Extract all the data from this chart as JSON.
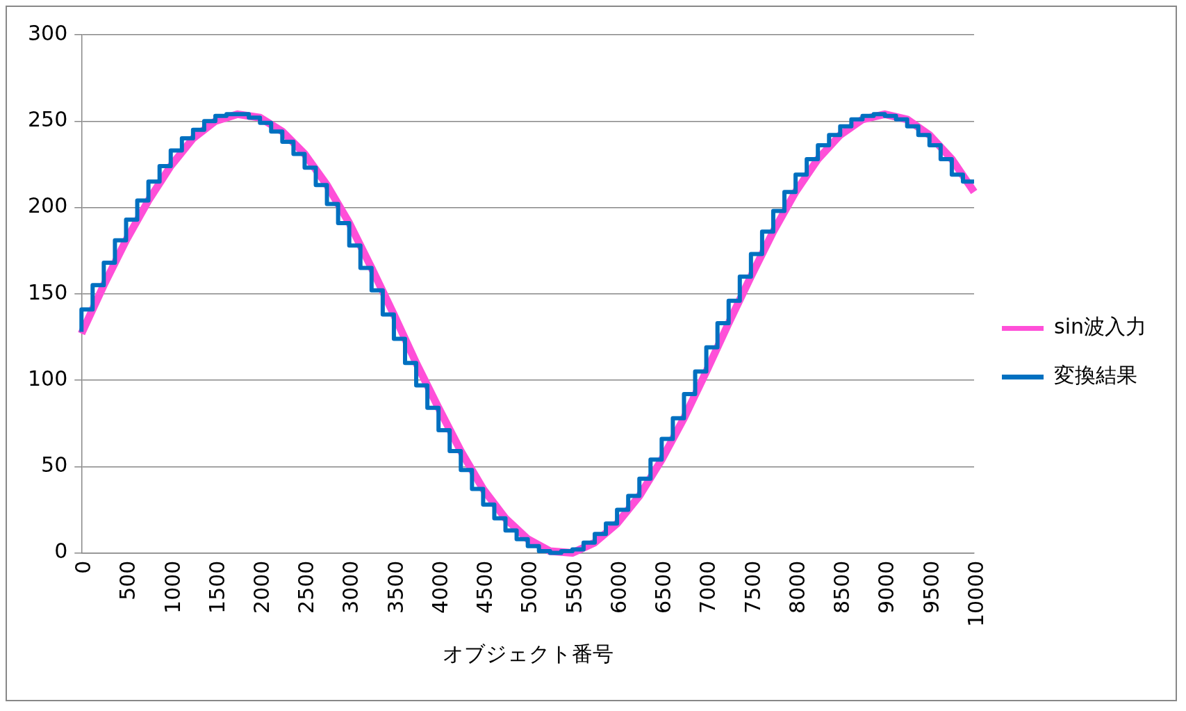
{
  "chart_data": {
    "type": "line",
    "xlabel": "オブジェクト番号",
    "xlim": [
      0,
      10000
    ],
    "xticks": [
      0,
      500,
      1000,
      1500,
      2000,
      2500,
      3000,
      3500,
      4000,
      4500,
      5000,
      5500,
      6000,
      6500,
      7000,
      7500,
      8000,
      8500,
      9000,
      9500,
      10000
    ],
    "ylim": [
      0,
      300
    ],
    "yticks": [
      0,
      50,
      100,
      150,
      200,
      250,
      300
    ],
    "grid": "y",
    "legend": "right",
    "line_style": "solid",
    "marker": "none",
    "series": [
      {
        "name": "sin波入力",
        "color": "#ff4fd8",
        "type": "line",
        "x": [
          0,
          250,
          500,
          750,
          1000,
          1250,
          1500,
          1750,
          2000,
          2250,
          2500,
          2750,
          3000,
          3250,
          3500,
          3750,
          4000,
          4250,
          4500,
          4750,
          5000,
          5250,
          5500,
          5750,
          6000,
          6250,
          6500,
          6750,
          7000,
          7250,
          7500,
          7750,
          8000,
          8250,
          8500,
          8750,
          9000,
          9250,
          9500,
          9750,
          10000
        ],
        "values": [
          127,
          155,
          181,
          204,
          224,
          240,
          250,
          254,
          252,
          244,
          231,
          213,
          191,
          165,
          138,
          110,
          84,
          59,
          37,
          20,
          8,
          1,
          0,
          6,
          17,
          33,
          54,
          78,
          105,
          133,
          160,
          186,
          209,
          228,
          242,
          251,
          254,
          251,
          242,
          228,
          209
        ]
      },
      {
        "name": "変換結果",
        "color": "#0070c0",
        "type": "step",
        "x": [
          0,
          125,
          250,
          375,
          500,
          625,
          750,
          875,
          1000,
          1125,
          1250,
          1375,
          1500,
          1625,
          1750,
          1875,
          2000,
          2125,
          2250,
          2375,
          2500,
          2625,
          2750,
          2875,
          3000,
          3125,
          3250,
          3375,
          3500,
          3625,
          3750,
          3875,
          4000,
          4125,
          4250,
          4375,
          4500,
          4625,
          4750,
          4875,
          5000,
          5125,
          5250,
          5375,
          5500,
          5625,
          5750,
          5875,
          6000,
          6125,
          6250,
          6375,
          6500,
          6625,
          6750,
          6875,
          7000,
          7125,
          7250,
          7375,
          7500,
          7625,
          7750,
          7875,
          8000,
          8125,
          8250,
          8375,
          8500,
          8625,
          8750,
          8875,
          9000,
          9125,
          9250,
          9375,
          9500,
          9625,
          9750,
          9875,
          10000
        ],
        "values": [
          128,
          141,
          155,
          168,
          181,
          193,
          204,
          215,
          224,
          233,
          240,
          245,
          250,
          253,
          254,
          254,
          252,
          249,
          244,
          238,
          231,
          223,
          213,
          202,
          191,
          178,
          165,
          152,
          138,
          124,
          110,
          97,
          84,
          71,
          59,
          48,
          37,
          28,
          20,
          13,
          8,
          4,
          1,
          0,
          1,
          2,
          6,
          11,
          17,
          25,
          33,
          43,
          54,
          66,
          78,
          92,
          105,
          119,
          133,
          146,
          160,
          173,
          186,
          198,
          209,
          219,
          228,
          236,
          242,
          247,
          251,
          253,
          254,
          253,
          251,
          247,
          242,
          236,
          228,
          219,
          215
        ]
      }
    ]
  }
}
